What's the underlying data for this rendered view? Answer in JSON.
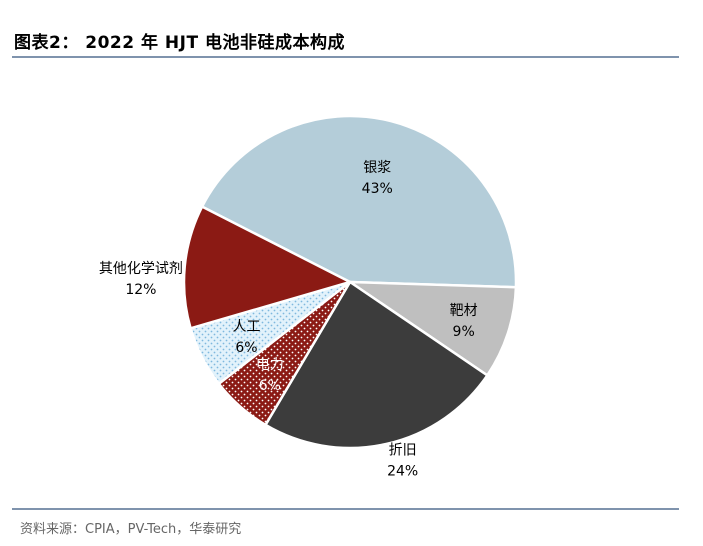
{
  "figure": {
    "title": "图表2： 2022 年 HJT 电池非硅成本构成",
    "source": "资料来源：CPIA，PV-Tech，华泰研究"
  },
  "chart_data": {
    "type": "pie",
    "title": "",
    "slices": [
      {
        "label": "银浆",
        "value": 43,
        "value_label": "43%",
        "color": "#b4cdd9",
        "pattern": "none"
      },
      {
        "label": "靶材",
        "value": 9,
        "value_label": "9%",
        "color": "#bfbfbf",
        "pattern": "none"
      },
      {
        "label": "折旧",
        "value": 24,
        "value_label": "24%",
        "color": "#3c3c3c",
        "pattern": "none"
      },
      {
        "label": "电力",
        "value": 6,
        "value_label": "6%",
        "color": "#8b1a14",
        "pattern": "white-dots"
      },
      {
        "label": "人工",
        "value": 6,
        "value_label": "6%",
        "color": "#d6ecf8",
        "pattern": "blue-dots"
      },
      {
        "label": "其他化学试剂",
        "value": 12,
        "value_label": "12%",
        "color": "#8b1a14",
        "pattern": "none"
      }
    ],
    "legend": "none",
    "label_positions": "inside-or-beside-slice"
  }
}
